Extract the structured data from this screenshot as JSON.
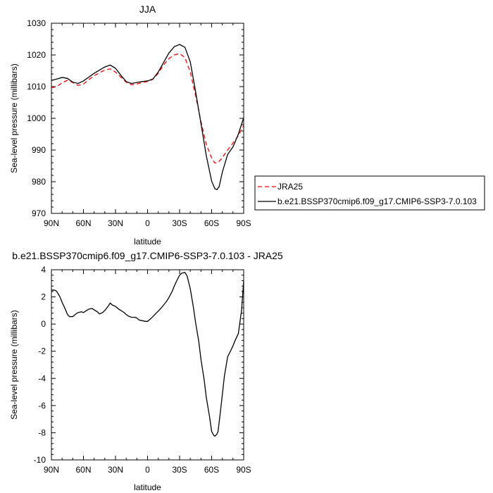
{
  "chart_data": [
    {
      "type": "line",
      "title": "JJA",
      "xlabel": "latitude",
      "ylabel": "Sea-level pressure (millibars)",
      "xlim": [
        90,
        -90
      ],
      "ylim": [
        970,
        1030
      ],
      "xticks": [
        90,
        60,
        30,
        0,
        -30,
        -60,
        -90
      ],
      "xtick_labels": [
        "90N",
        "60N",
        "30N",
        "0",
        "30S",
        "60S",
        "90S"
      ],
      "yticks": [
        970,
        980,
        990,
        1000,
        1010,
        1020,
        1030
      ],
      "ytick_labels": [
        "970",
        "980",
        "990",
        "1000",
        "1010",
        "1020",
        "1030"
      ],
      "grid": false,
      "legend_position": "right",
      "series": [
        {
          "name": "JRA25",
          "color": "#ff0000",
          "dash": "dashed",
          "x": [
            90,
            85,
            80,
            75,
            70,
            65,
            60,
            55,
            50,
            45,
            40,
            35,
            30,
            25,
            20,
            15,
            10,
            5,
            0,
            -5,
            -10,
            -15,
            -20,
            -25,
            -30,
            -35,
            -40,
            -45,
            -50,
            -55,
            -60,
            -63,
            -66,
            -70,
            -75,
            -80,
            -85,
            -90
          ],
          "y": [
            1009.6,
            1010.0,
            1011.2,
            1012.0,
            1011.3,
            1010.4,
            1010.8,
            1012.2,
            1013.4,
            1014.4,
            1015.2,
            1015.6,
            1014.6,
            1013.0,
            1011.4,
            1010.6,
            1010.8,
            1011.3,
            1011.6,
            1012.3,
            1014.2,
            1016.8,
            1018.8,
            1020.0,
            1020.4,
            1019.2,
            1014.6,
            1007.2,
            999.0,
            991.8,
            987.6,
            985.9,
            986.0,
            987.6,
            990.0,
            992.2,
            994.5,
            997.8
          ]
        },
        {
          "name": "b.e21.BSSP370cmip6.f09_g17.CMIP6-SSP3-7.0.103",
          "color": "#000000",
          "dash": "solid",
          "x": [
            90,
            85,
            80,
            75,
            70,
            65,
            60,
            55,
            50,
            45,
            40,
            35,
            30,
            25,
            20,
            15,
            10,
            5,
            0,
            -5,
            -10,
            -15,
            -20,
            -25,
            -30,
            -35,
            -40,
            -45,
            -50,
            -55,
            -60,
            -63,
            -65,
            -67,
            -70,
            -75,
            -80,
            -85,
            -90
          ],
          "y": [
            1012.0,
            1012.4,
            1012.9,
            1012.6,
            1011.4,
            1011.0,
            1011.8,
            1013.0,
            1014.2,
            1015.2,
            1016.2,
            1016.8,
            1015.8,
            1013.6,
            1011.6,
            1011.0,
            1011.3,
            1011.6,
            1011.8,
            1012.4,
            1014.6,
            1017.6,
            1020.6,
            1022.6,
            1023.3,
            1022.4,
            1017.8,
            1008.4,
            998.4,
            988.2,
            980.2,
            977.8,
            977.5,
            978.4,
            983.0,
            988.6,
            991.0,
            995.0,
            1000.2
          ]
        }
      ]
    },
    {
      "type": "line",
      "title": "b.e21.BSSP370cmip6.f09_g17.CMIP6-SSP3-7.0.103 - JRA25",
      "xlabel": "latitude",
      "ylabel": "Sea-level pressure (millibars)",
      "xlim": [
        90,
        -90
      ],
      "ylim": [
        -10,
        4
      ],
      "xticks": [
        90,
        60,
        30,
        0,
        -30,
        -60,
        -90
      ],
      "xtick_labels": [
        "90N",
        "60N",
        "30N",
        "0",
        "30S",
        "60S",
        "90S"
      ],
      "yticks": [
        -10,
        -8,
        -6,
        -4,
        -2,
        0,
        2,
        4
      ],
      "ytick_labels": [
        "-10",
        "-8",
        "-6",
        "-4",
        "-2",
        "0",
        "2",
        "4"
      ],
      "grid": false,
      "series": [
        {
          "color": "#000000",
          "dash": "solid",
          "x": [
            90,
            87,
            85,
            82,
            80,
            77,
            75,
            73,
            70,
            67,
            65,
            62,
            60,
            57,
            55,
            52,
            50,
            47,
            45,
            42,
            40,
            37,
            35,
            33,
            30,
            27,
            25,
            22,
            20,
            17,
            15,
            12,
            10,
            8,
            5,
            2,
            0,
            -3,
            -5,
            -8,
            -10,
            -13,
            -15,
            -18,
            -20,
            -23,
            -25,
            -28,
            -30,
            -32,
            -35,
            -37,
            -40,
            -43,
            -45,
            -48,
            -50,
            -53,
            -55,
            -58,
            -60,
            -62,
            -63,
            -65,
            -66,
            -68,
            -70,
            -72,
            -75,
            -77,
            -80,
            -82,
            -85,
            -88,
            -90
          ],
          "y": [
            2.5,
            2.5,
            2.4,
            2.0,
            1.6,
            1.1,
            0.7,
            0.55,
            0.55,
            0.75,
            0.85,
            0.9,
            0.85,
            1.0,
            1.1,
            1.15,
            1.05,
            0.9,
            0.75,
            0.85,
            1.0,
            1.3,
            1.55,
            1.4,
            1.3,
            1.1,
            1.0,
            0.85,
            0.7,
            0.55,
            0.5,
            0.5,
            0.45,
            0.3,
            0.25,
            0.2,
            0.2,
            0.4,
            0.55,
            0.8,
            0.95,
            1.2,
            1.4,
            1.7,
            1.95,
            2.4,
            2.8,
            3.3,
            3.6,
            3.75,
            3.8,
            3.55,
            2.6,
            1.2,
            0.1,
            -1.3,
            -2.6,
            -4.1,
            -5.4,
            -6.8,
            -7.9,
            -8.2,
            -8.25,
            -8.1,
            -7.9,
            -6.6,
            -5.2,
            -3.8,
            -2.4,
            -2.1,
            -1.6,
            -1.2,
            -0.7,
            1.0,
            3.2
          ]
        }
      ]
    }
  ]
}
